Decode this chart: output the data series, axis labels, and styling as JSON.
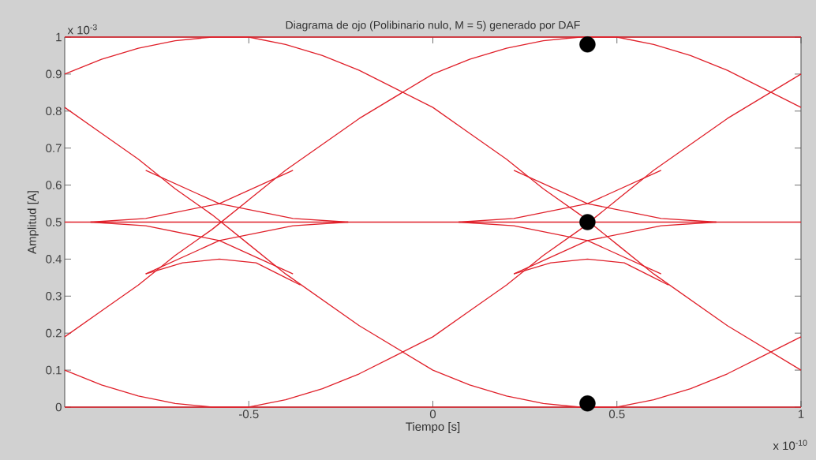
{
  "chart_data": {
    "type": "line",
    "title": "Diagrama de ojo (Polibinario nulo, M = 5) generado por DAF",
    "xlabel": "Tiempo [s]",
    "ylabel": "Amplitud [A]",
    "annotations": [
      "x 10$^{-3}$",
      "x 10$^{-10}$"
    ],
    "xlim": [
      -1,
      1
    ],
    "ylim": [
      0,
      1
    ],
    "xticks": [
      -0.5,
      0,
      0.5,
      1
    ],
    "yticks": [
      0,
      0.1,
      0.2,
      0.3,
      0.4,
      0.5,
      0.6,
      0.7,
      0.8,
      0.9,
      1
    ],
    "series": [
      {
        "color": "#e0202a",
        "x": [
          -1,
          -0.9,
          -0.8,
          -0.7,
          -0.6,
          -0.5,
          -0.4,
          -0.3,
          -0.2,
          -0.1,
          0,
          0.1,
          0.2,
          0.3,
          0.4,
          0.5,
          0.6,
          0.7,
          0.8,
          0.9,
          1
        ],
        "values": [
          0.9,
          0.94,
          0.97,
          0.99,
          1.0,
          1.0,
          0.98,
          0.95,
          0.91,
          0.86,
          0.81,
          0.74,
          0.67,
          0.59,
          0.52,
          0.44,
          0.36,
          0.29,
          0.22,
          0.16,
          0.1
        ]
      },
      {
        "type": "line",
        "color": "#e0202a",
        "x": [
          -1,
          -0.9,
          -0.8,
          -0.7,
          -0.6,
          -0.5,
          -0.4,
          -0.3,
          -0.2,
          -0.1,
          0,
          0.1,
          0.2,
          0.3,
          0.4,
          0.5,
          0.6,
          0.7,
          0.8,
          0.9,
          1
        ],
        "values": [
          0.1,
          0.06,
          0.03,
          0.01,
          0,
          0,
          0.02,
          0.05,
          0.09,
          0.14,
          0.19,
          0.26,
          0.33,
          0.41,
          0.48,
          0.56,
          0.64,
          0.71,
          0.78,
          0.84,
          0.9
        ]
      },
      {
        "type": "line",
        "color": "#e0202a",
        "x": [
          -1,
          -0.9,
          -0.8,
          -0.7,
          -0.6,
          -0.5,
          -0.4,
          -0.3,
          -0.2,
          -0.1,
          0,
          0.1,
          0.2,
          0.3,
          0.4,
          0.5,
          0.6,
          0.7,
          0.8,
          0.9,
          1
        ],
        "values": [
          0.19,
          0.26,
          0.33,
          0.41,
          0.48,
          0.56,
          0.64,
          0.71,
          0.78,
          0.84,
          0.9,
          0.94,
          0.97,
          0.99,
          1.0,
          1.0,
          0.98,
          0.95,
          0.91,
          0.86,
          0.81
        ]
      },
      {
        "type": "line",
        "color": "#e0202a",
        "x": [
          -1,
          -0.9,
          -0.8,
          -0.7,
          -0.6,
          -0.5,
          -0.4,
          -0.3,
          -0.2,
          -0.1,
          0,
          0.1,
          0.2,
          0.3,
          0.4,
          0.5,
          0.6,
          0.7,
          0.8,
          0.9,
          1
        ],
        "values": [
          0.81,
          0.74,
          0.67,
          0.59,
          0.52,
          0.44,
          0.36,
          0.29,
          0.22,
          0.16,
          0.1,
          0.06,
          0.03,
          0.01,
          0,
          0,
          0.02,
          0.05,
          0.09,
          0.14,
          0.19
        ]
      },
      {
        "color": "#e0202a",
        "x": [
          -1,
          1
        ],
        "values": [
          0.5,
          0.5
        ]
      },
      {
        "type": "line",
        "color": "#e0202a",
        "x": [
          -1,
          1
        ],
        "values": [
          1,
          1
        ]
      },
      {
        "type": "line",
        "color": "#e0202a",
        "x": [
          -1,
          1
        ],
        "values": [
          0,
          0
        ]
      },
      {
        "type": "line",
        "color": "#e0202a",
        "x": [
          -0.78,
          -0.68,
          -0.58,
          -0.48,
          -0.4,
          -0.36
        ],
        "values": [
          0.36,
          0.39,
          0.4,
          0.39,
          0.35,
          0.33
        ]
      },
      {
        "type": "line",
        "color": "#e0202a",
        "x": [
          0.22,
          0.32,
          0.42,
          0.52,
          0.6,
          0.64
        ],
        "values": [
          0.36,
          0.39,
          0.4,
          0.39,
          0.35,
          0.33
        ]
      },
      {
        "type": "line",
        "color": "#e0202a",
        "x": [
          -0.78,
          -0.58,
          -0.38,
          -0.23
        ],
        "values": [
          0.36,
          0.45,
          0.49,
          0.5
        ]
      },
      {
        "type": "line",
        "color": "#e0202a",
        "x": [
          -0.93,
          -0.78,
          -0.58,
          -0.38
        ],
        "values": [
          0.5,
          0.49,
          0.45,
          0.36
        ]
      },
      {
        "type": "line",
        "color": "#e0202a",
        "x": [
          -0.78,
          -0.58,
          -0.38,
          -0.23
        ],
        "values": [
          0.64,
          0.55,
          0.51,
          0.5
        ]
      },
      {
        "type": "line",
        "color": "#e0202a",
        "x": [
          -0.93,
          -0.78,
          -0.58,
          -0.38
        ],
        "values": [
          0.5,
          0.51,
          0.55,
          0.64
        ]
      },
      {
        "type": "line",
        "color": "#e0202a",
        "x": [
          0.22,
          0.42,
          0.62,
          0.77
        ],
        "values": [
          0.36,
          0.45,
          0.49,
          0.5
        ]
      },
      {
        "type": "line",
        "color": "#e0202a",
        "x": [
          0.07,
          0.22,
          0.42,
          0.62
        ],
        "values": [
          0.5,
          0.49,
          0.45,
          0.36
        ]
      },
      {
        "type": "line",
        "color": "#e0202a",
        "x": [
          0.22,
          0.42,
          0.62,
          0.77
        ],
        "values": [
          0.64,
          0.55,
          0.51,
          0.5
        ]
      },
      {
        "type": "line",
        "color": "#e0202a",
        "x": [
          0.07,
          0.22,
          0.42,
          0.62
        ],
        "values": [
          0.5,
          0.51,
          0.55,
          0.64
        ]
      },
      {
        "type": "scatter",
        "color": "#000000",
        "x": [
          0.42,
          0.42,
          0.42
        ],
        "values": [
          0.98,
          0.5,
          0.01
        ]
      }
    ]
  }
}
